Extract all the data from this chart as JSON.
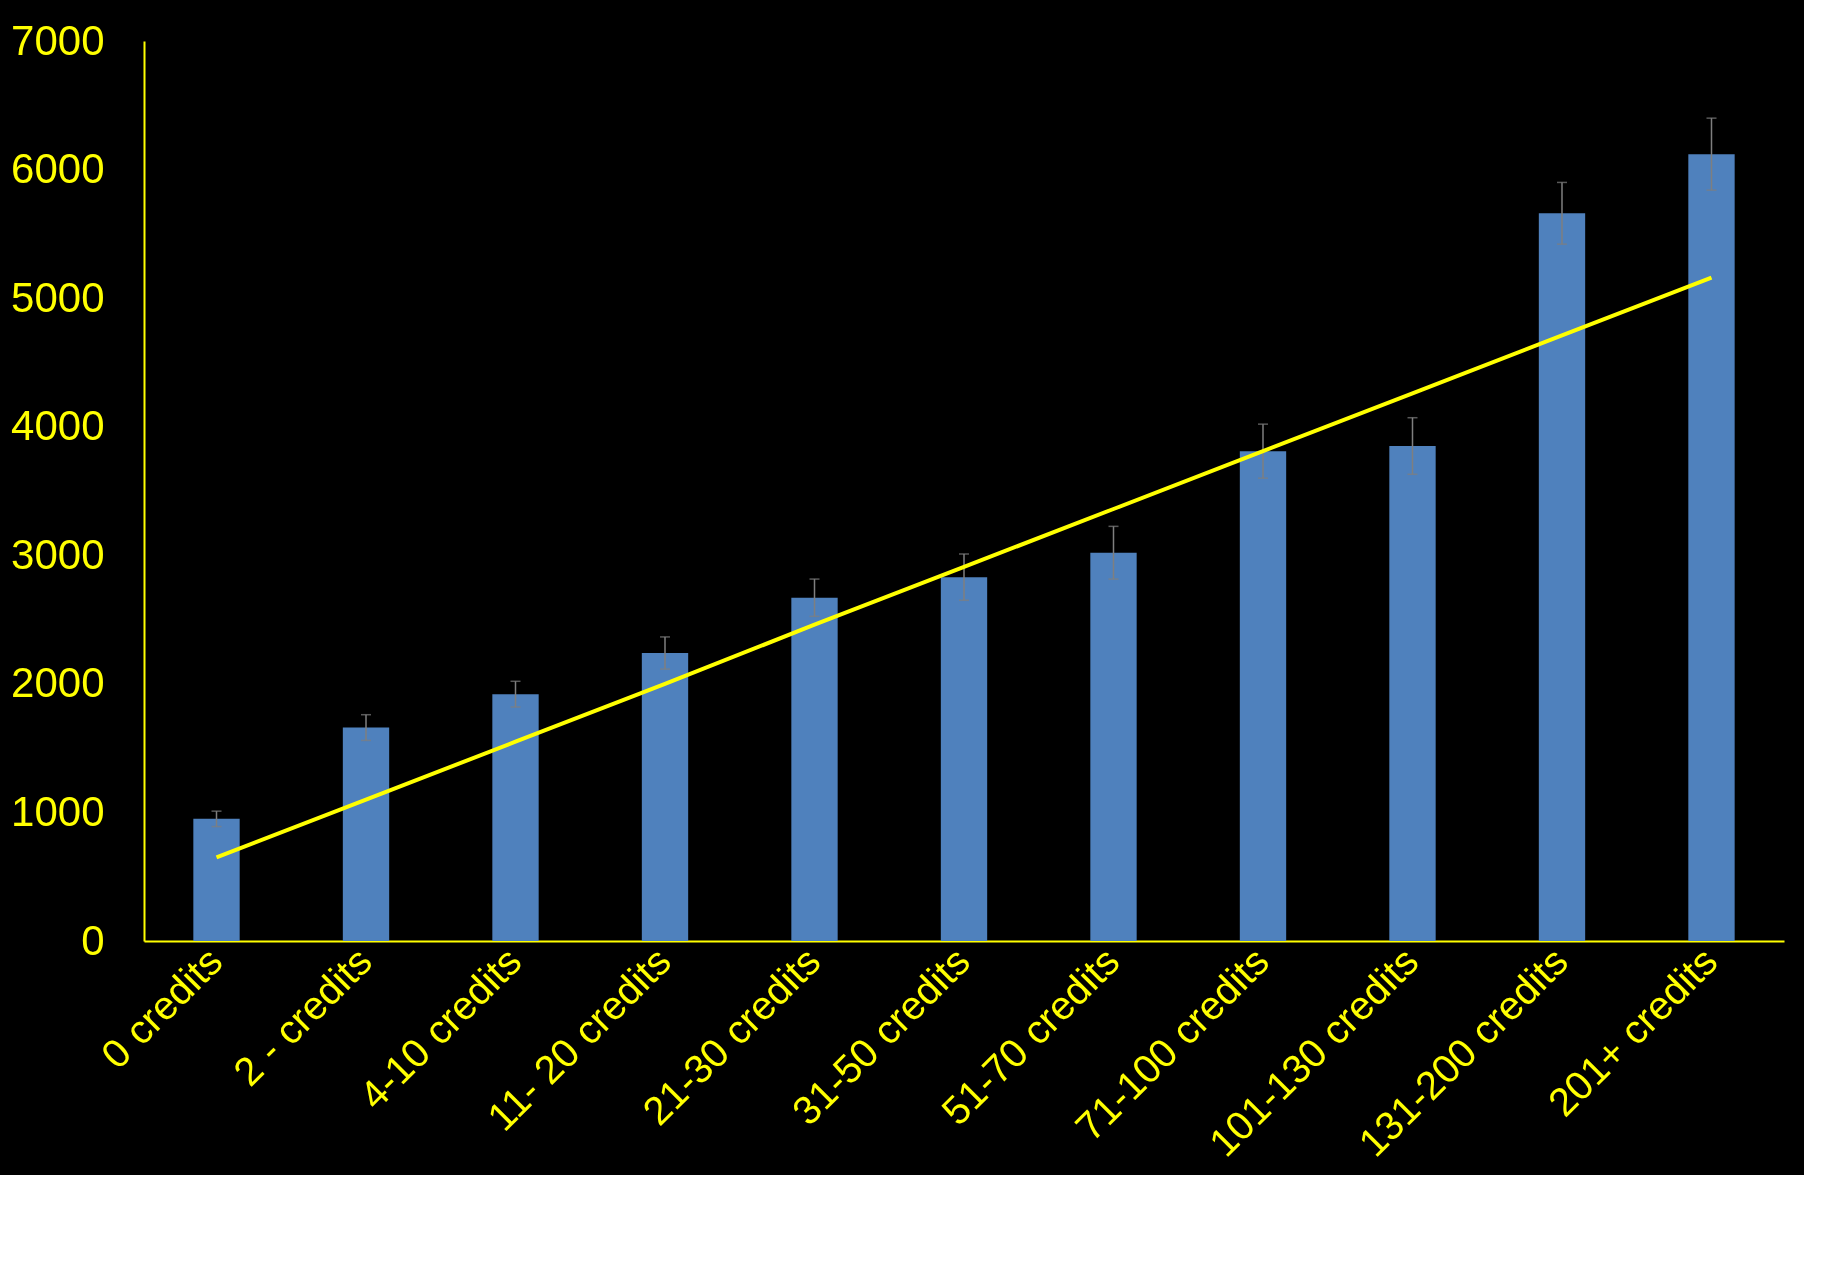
{
  "chart_data": {
    "type": "bar",
    "categories": [
      "0 credits",
      "2 - credits",
      "4-10 credits",
      "11- 20 credits",
      "21-30 credits",
      "31-50 credits",
      "51-70 credits",
      "71-100 credits",
      "101-130 credits",
      "131-200 credits",
      "201+ credits"
    ],
    "series": [
      {
        "color": "#4f81bd",
        "values": [
          950,
          1660,
          1920,
          2240,
          2670,
          2830,
          3020,
          3810,
          3850,
          5660,
          6120
        ],
        "errors": [
          60,
          100,
          100,
          125,
          145,
          180,
          205,
          210,
          220,
          240,
          280
        ]
      },
      {
        "type": "line",
        "color": "#ffff00",
        "values": [
          650,
          1100,
          1550,
          2000,
          2460,
          2910,
          3360,
          3810,
          4260,
          4710,
          5160
        ]
      }
    ],
    "ylim": [
      0,
      7000
    ],
    "yticks": [
      0,
      1000,
      2000,
      3000,
      4000,
      5000,
      6000,
      7000
    ],
    "grid": false
  }
}
